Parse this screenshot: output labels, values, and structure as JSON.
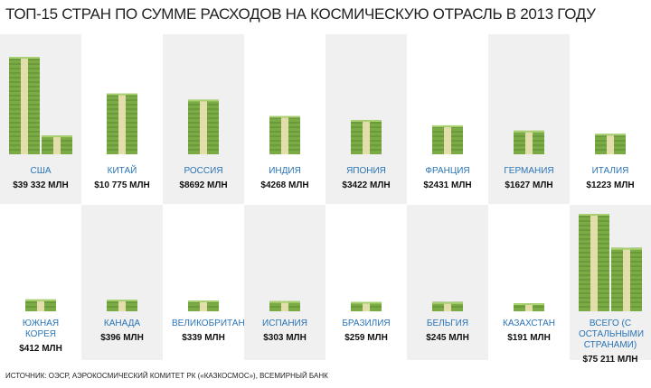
{
  "chart_data": {
    "type": "pictograph",
    "title": "ТОП-15 СТРАН ПО СУММЕ РАСХОДОВ НА КОСМИЧЕСКУЮ ОТРАСЛЬ В 2013 ГОДУ",
    "categories": [
      "США",
      "КИТАЙ",
      "РОССИЯ",
      "ИНДИЯ",
      "ЯПОНИЯ",
      "ФРАНЦИЯ",
      "ГЕРМАНИЯ",
      "ИТАЛИЯ",
      "ЮЖНАЯ КОРЕЯ",
      "КАНАДА",
      "ВЕЛИКОБРИТАНИЯ",
      "ИСПАНИЯ",
      "БРАЗИЛИЯ",
      "БЕЛЬГИЯ",
      "КАЗАХСТАН",
      "ВСЕГО (С ОСТАЛЬНЫМИ СТРАНАМИ)"
    ],
    "values": [
      39332,
      10775,
      8692,
      4268,
      3422,
      2431,
      1627,
      1223,
      412,
      396,
      339,
      303,
      259,
      245,
      191,
      75211
    ],
    "value_labels": [
      "$39 332 МЛН",
      "$10 775 МЛН",
      "$8692 МЛН",
      "$4268 МЛН",
      "$3422 МЛН",
      "$2431 МЛН",
      "$1627 МЛН",
      "$1223 МЛН",
      "$412 МЛН",
      "$396 МЛН",
      "$339 МЛН",
      "$303 МЛН",
      "$259 МЛН",
      "$245 МЛН",
      "$191 МЛН",
      "$75 211 МЛН"
    ],
    "color": "#7aab45",
    "source": "ИСТОЧНИК: ОЭСР, АЭРОКОСМИЧЕСКИЙ КОМИТЕТ РК («КАЗКОСМОС»), ВСЕМИРНЫЙ БАНК"
  }
}
